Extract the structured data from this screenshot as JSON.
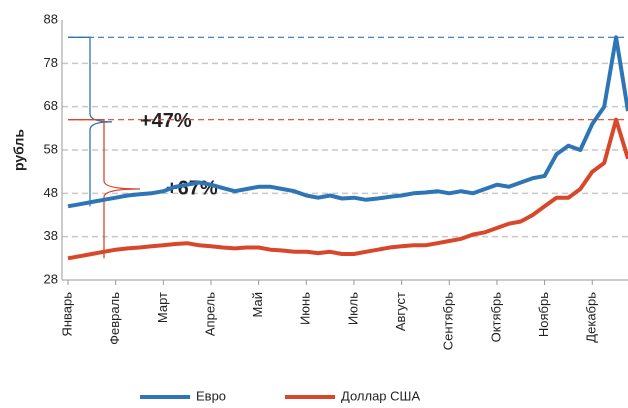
{
  "chart_data": {
    "type": "line",
    "y_label": "рубль",
    "categories": [
      "Январь",
      null,
      null,
      null,
      "Февраль",
      null,
      null,
      null,
      "Март",
      null,
      null,
      null,
      "Апрель",
      null,
      null,
      null,
      "Май",
      null,
      null,
      null,
      "Июнь",
      null,
      null,
      null,
      "Июль",
      null,
      null,
      null,
      "Август",
      null,
      null,
      null,
      "Сентябрь",
      null,
      null,
      null,
      "Октябрь",
      null,
      null,
      null,
      "Ноябрь",
      null,
      null,
      null,
      "Декабрь",
      null,
      null,
      null
    ],
    "series": [
      {
        "name": "Евро",
        "color": "#2e75b6",
        "values": [
          45,
          45.5,
          46,
          46.5,
          47,
          47.5,
          47.8,
          48,
          48.5,
          49.5,
          50,
          50.5,
          50,
          49.2,
          48.5,
          49,
          49.5,
          49.5,
          49,
          48.5,
          47.5,
          47,
          47.5,
          46.8,
          47,
          46.5,
          46.8,
          47.2,
          47.5,
          48,
          48.2,
          48.5,
          48,
          48.5,
          48,
          49,
          50,
          49.5,
          50.5,
          51.5,
          52,
          57,
          59,
          58,
          64,
          68,
          84,
          67
        ]
      },
      {
        "name": "Доллар США",
        "color": "#d9472b",
        "values": [
          33,
          33.5,
          34,
          34.5,
          35,
          35.3,
          35.5,
          35.8,
          36,
          36.3,
          36.5,
          36,
          35.8,
          35.5,
          35.3,
          35.5,
          35.5,
          35,
          34.8,
          34.5,
          34.5,
          34.2,
          34.5,
          34,
          34,
          34.5,
          35,
          35.5,
          35.8,
          36,
          36,
          36.5,
          37,
          37.5,
          38.5,
          39,
          40,
          41,
          41.5,
          43,
          45,
          47,
          47,
          49,
          53,
          55,
          65,
          56
        ]
      }
    ],
    "annotations": [
      "+47%",
      "+67%"
    ],
    "ylim": [
      28,
      88
    ],
    "yticks": [
      28,
      38,
      48,
      58,
      68,
      78,
      88
    ],
    "grid": true,
    "legend": "bottom"
  }
}
